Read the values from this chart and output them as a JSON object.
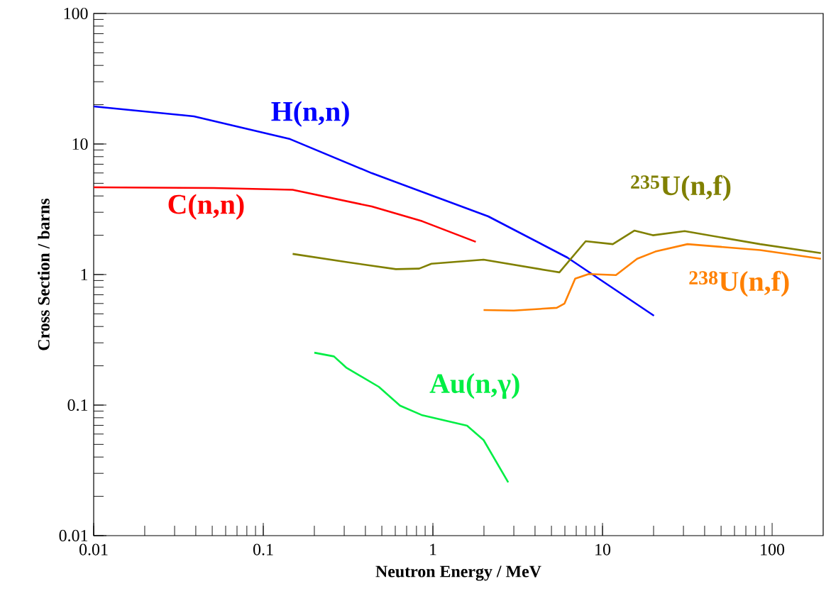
{
  "chart_data": {
    "type": "line",
    "xlabel": "Neutron Energy / MeV",
    "ylabel": "Cross Section / barns",
    "log": "xy",
    "xlim": [
      0.01,
      200
    ],
    "ylim": [
      0.01,
      100
    ],
    "xticks": [
      0.01,
      0.1,
      1,
      10,
      100
    ],
    "yticks": [
      0.01,
      0.1,
      1,
      10,
      100
    ],
    "series": [
      {
        "name": "H(n,n)",
        "color": "#0000ff",
        "x": [
          0.01,
          0.039,
          0.144,
          0.436,
          2.12,
          6.2,
          20.1
        ],
        "values": [
          19.4,
          16.3,
          10.9,
          5.98,
          2.79,
          1.35,
          0.484
        ]
      },
      {
        "name": "C(n,n)",
        "color": "#ff0000",
        "x": [
          0.01,
          0.051,
          0.149,
          0.436,
          0.865,
          1.79
        ],
        "values": [
          4.66,
          4.6,
          4.46,
          3.32,
          2.56,
          1.78
        ]
      },
      {
        "name": "$^{235}$U(n,f)",
        "color": "#808000",
        "x": [
          0.149,
          0.317,
          0.605,
          0.83,
          0.98,
          1.99,
          5.06,
          5.57,
          7.96,
          11.5,
          15.4,
          19.8,
          30.5,
          84.9,
          194
        ],
        "values": [
          1.44,
          1.24,
          1.1,
          1.11,
          1.21,
          1.3,
          1.06,
          1.04,
          1.8,
          1.71,
          2.17,
          2.0,
          2.15,
          1.71,
          1.46
        ]
      },
      {
        "name": "$^{238}$U(n,f)",
        "color": "#ff8000",
        "x": [
          1.99,
          3.0,
          5.37,
          5.97,
          6.9,
          8.3,
          12.0,
          16.0,
          20.5,
          31.7,
          85,
          194
        ],
        "values": [
          0.535,
          0.53,
          0.556,
          0.6,
          0.93,
          1.01,
          0.99,
          1.32,
          1.5,
          1.71,
          1.54,
          1.32
        ]
      },
      {
        "name": "Au(n,γ)",
        "color": "#00ee44",
        "x": [
          0.2,
          0.261,
          0.308,
          0.48,
          0.64,
          0.857,
          1.59,
          1.99,
          2.78
        ],
        "values": [
          0.252,
          0.236,
          0.194,
          0.138,
          0.099,
          0.084,
          0.0695,
          0.054,
          0.0256
        ]
      }
    ]
  }
}
